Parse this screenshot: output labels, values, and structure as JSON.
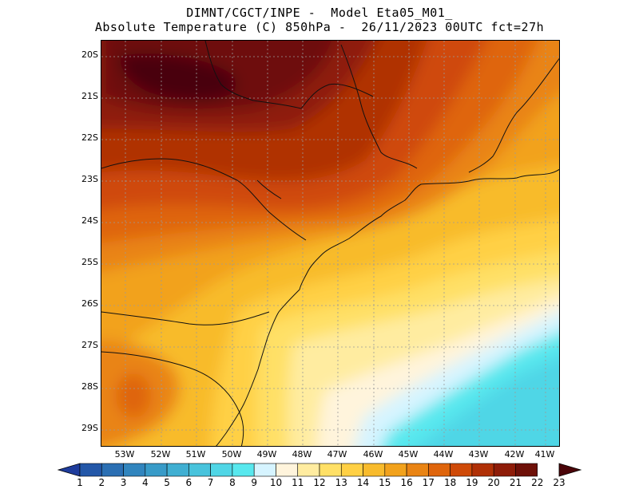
{
  "header": {
    "line1": "DIMNT/CGCT/INPE -  Model Eta05_M01_",
    "line2": "Absolute Temperature (C) 850hPa -  26/11/2023 00UTC fct=27h"
  },
  "axes": {
    "lat_labels": [
      "20S",
      "21S",
      "22S",
      "23S",
      "24S",
      "25S",
      "26S",
      "27S",
      "28S",
      "29S"
    ],
    "lon_labels": [
      "53W",
      "52W",
      "51W",
      "50W",
      "49W",
      "48W",
      "47W",
      "46W",
      "45W",
      "44W",
      "43W",
      "42W",
      "41W"
    ]
  },
  "colorbar": {
    "labels": [
      "1",
      "2",
      "3",
      "4",
      "5",
      "6",
      "7",
      "8",
      "9",
      "10",
      "11",
      "12",
      "13",
      "14",
      "15",
      "16",
      "17",
      "18",
      "19",
      "20",
      "21",
      "22",
      "23"
    ],
    "colors": [
      "#1e3c9c",
      "#2357a8",
      "#2b6fb3",
      "#3185be",
      "#389bc8",
      "#40afd2",
      "#48c3dc",
      "#50d6e6",
      "#58e8ee",
      "#d6f4ff",
      "#fff4dc",
      "#ffeca0",
      "#ffe066",
      "#ffd044",
      "#f8bb2c",
      "#f2a21c",
      "#e98414",
      "#df650c",
      "#cf4a08",
      "#b03006",
      "#8e1c08",
      "#6e1008",
      "#4a0408"
    ]
  }
}
